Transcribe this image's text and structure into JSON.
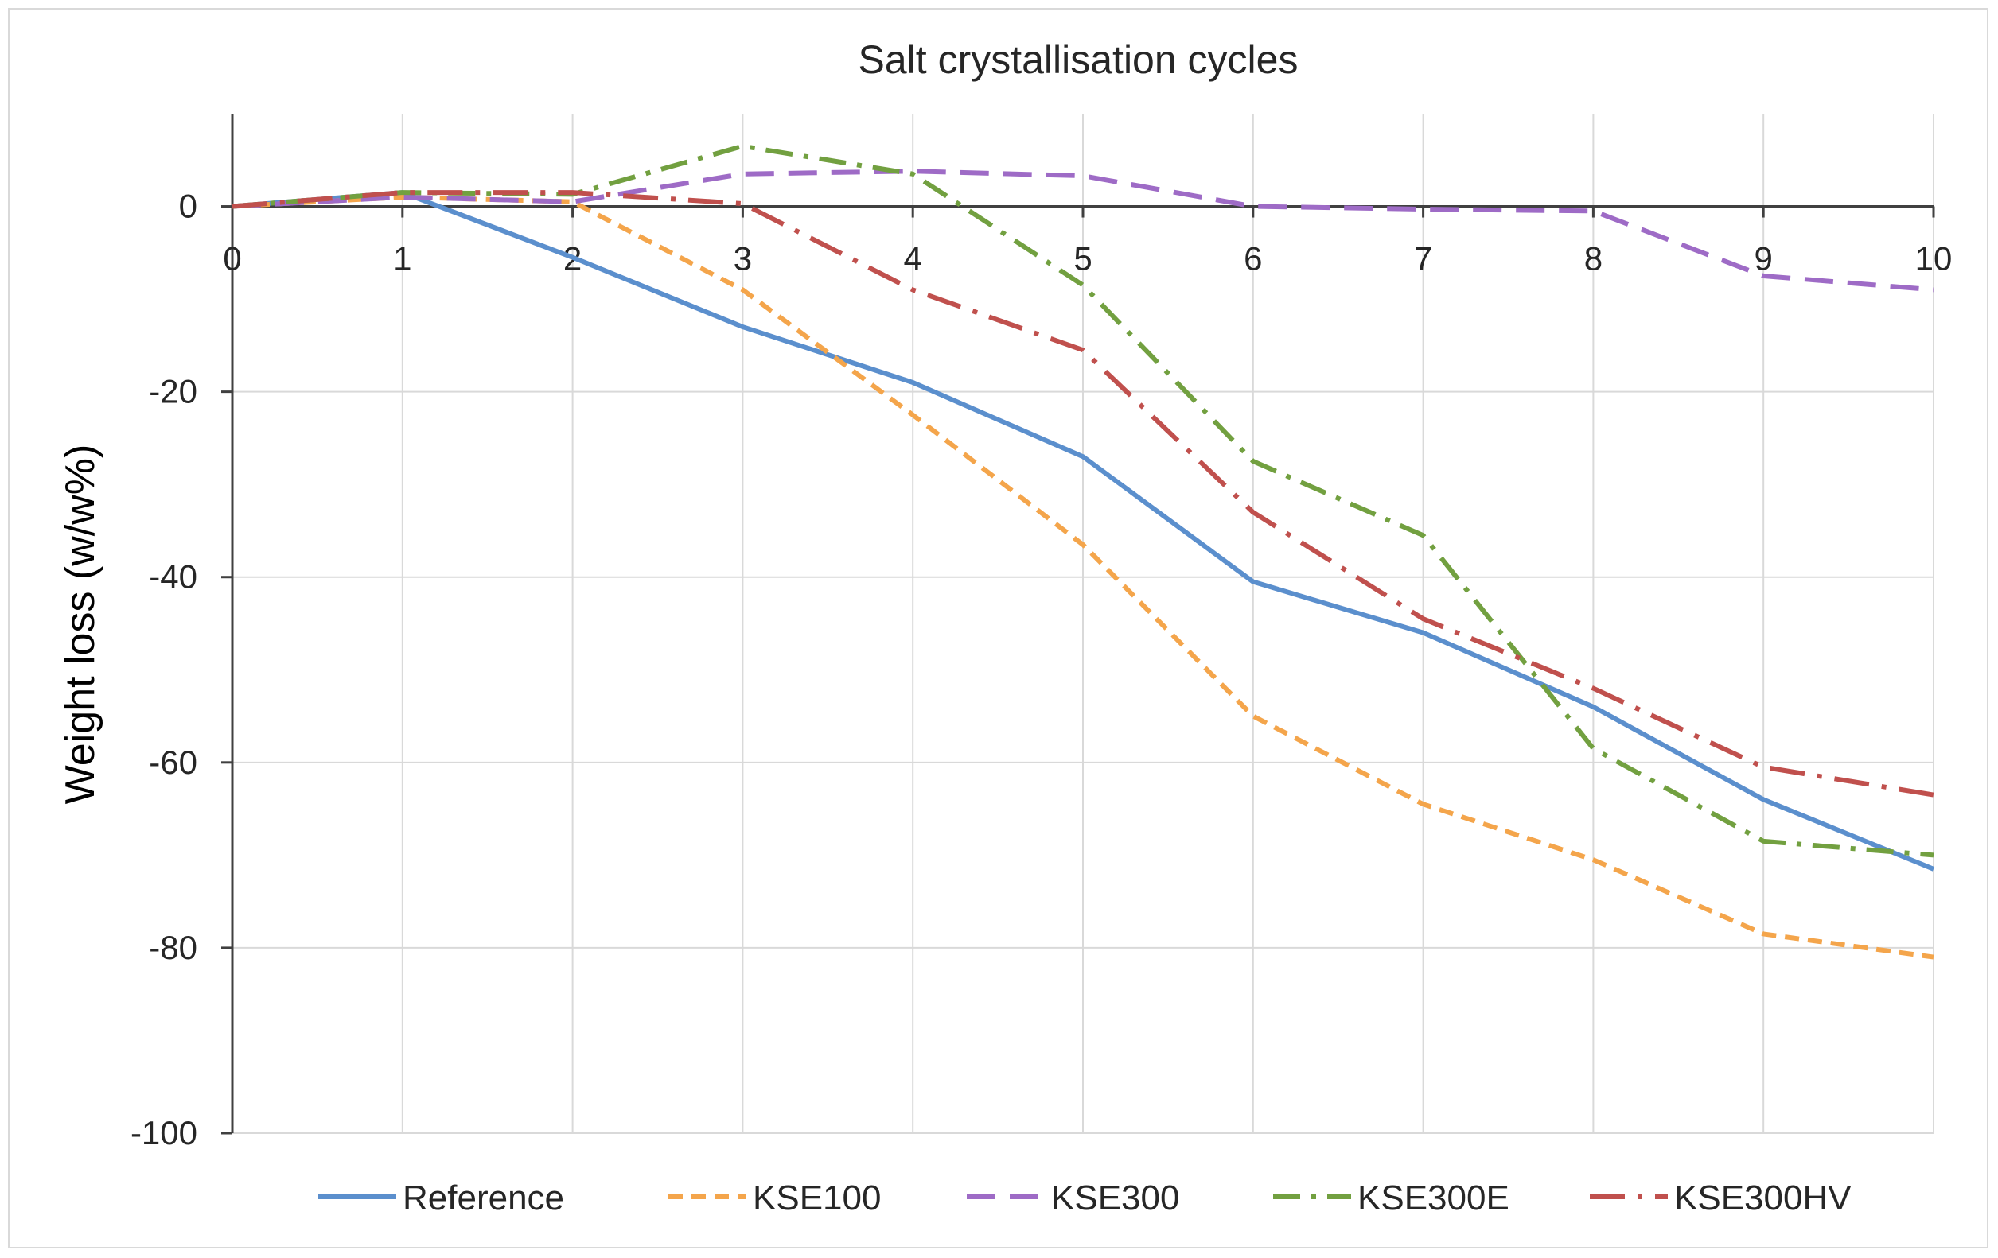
{
  "chart_data": {
    "type": "line",
    "title": "Salt crystallisation cycles",
    "xlabel": "",
    "ylabel": "Weight loss (w/w%)",
    "x": [
      0,
      1,
      2,
      3,
      4,
      5,
      6,
      7,
      8,
      9,
      10
    ],
    "xlim": [
      0,
      10
    ],
    "ylim": [
      -100,
      10
    ],
    "yticks": [
      0,
      -20,
      -40,
      -60,
      -80,
      -100
    ],
    "grid": true,
    "legend_position": "bottom",
    "series": [
      {
        "name": "Reference",
        "color": "#5b8fcd",
        "dash": "solid",
        "values": [
          0,
          1.5,
          -5.5,
          -13,
          -19,
          -27,
          -40.5,
          -46,
          -54,
          -64,
          -71.5
        ]
      },
      {
        "name": "KSE100",
        "color": "#f4a54b",
        "dash": "dash",
        "values": [
          0,
          1,
          0.5,
          -9,
          -22.5,
          -36.5,
          -55,
          -64.5,
          -70.5,
          -78.5,
          -81
        ]
      },
      {
        "name": "KSE300",
        "color": "#9e6bc6",
        "dash": "longdash",
        "values": [
          0,
          1,
          0.5,
          3.5,
          3.8,
          3.3,
          0,
          -0.3,
          -0.5,
          -7.5,
          -9
        ]
      },
      {
        "name": "KSE300E",
        "color": "#72a040",
        "dash": "dashdot",
        "values": [
          0,
          1.5,
          1.3,
          6.5,
          3.5,
          -8.5,
          -27.5,
          -35.5,
          -58.5,
          -68.5,
          -70
        ]
      },
      {
        "name": "KSE300HV",
        "color": "#c0504d",
        "dash": "longdashdot",
        "values": [
          0,
          1.5,
          1.5,
          0.3,
          -9,
          -15.5,
          -33,
          -44.5,
          -52,
          -60.5,
          -63.5
        ]
      }
    ]
  }
}
